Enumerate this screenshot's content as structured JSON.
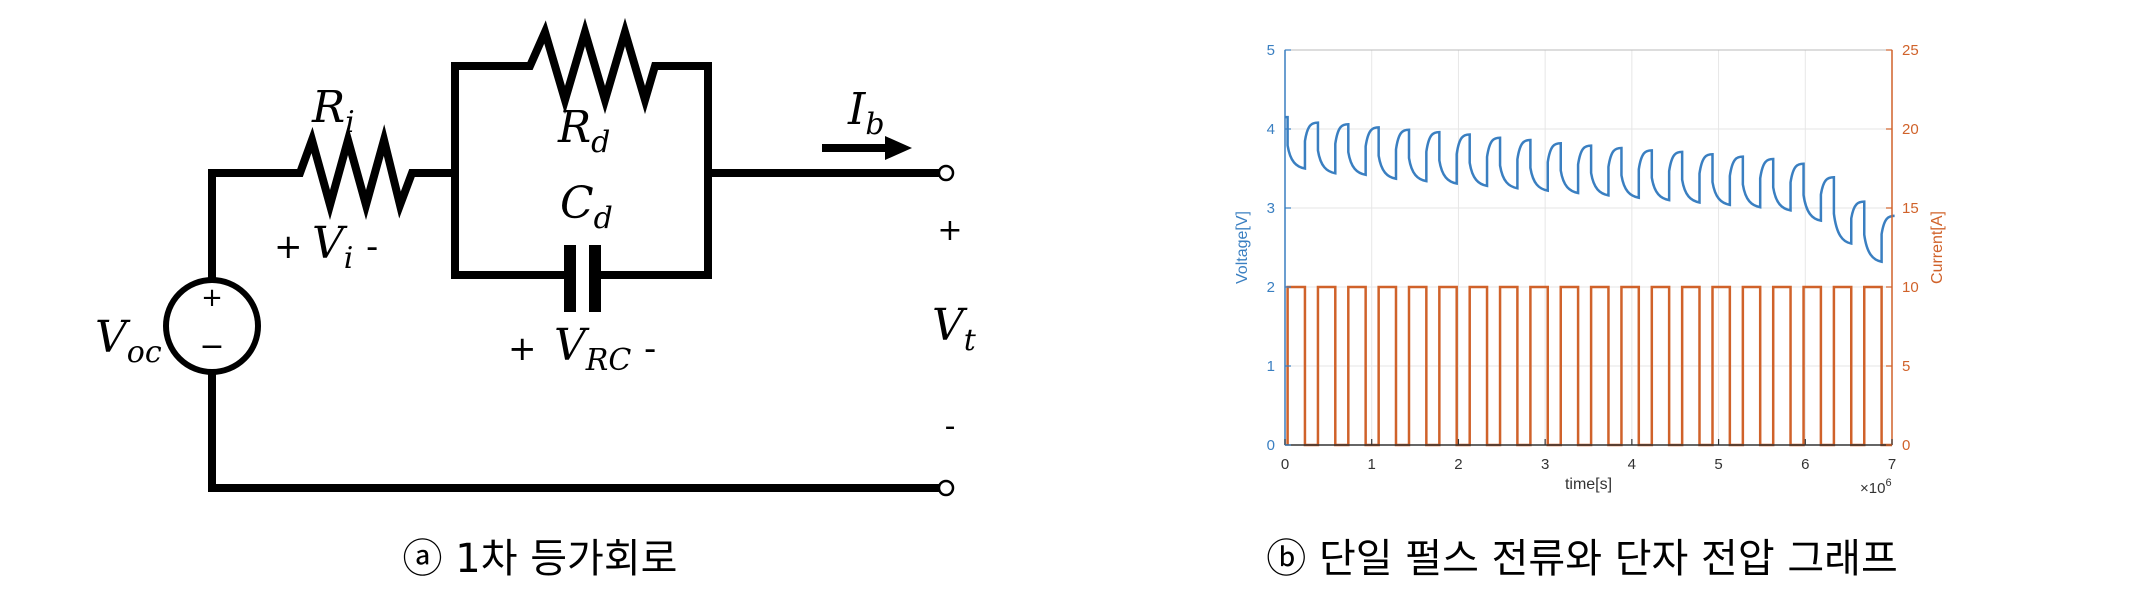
{
  "circuit": {
    "title_caption": "ⓐ 1차 등가회로",
    "labels": {
      "Voc_main": "V",
      "Voc_sub": "oc",
      "Ri_main": "R",
      "Ri_sub": "i",
      "Rd_main": "R",
      "Rd_sub": "d",
      "Cd_main": "C",
      "Cd_sub": "d",
      "Ib_main": "I",
      "Ib_sub": "b",
      "Vi_plus": "+",
      "Vi_main": "V",
      "Vi_sub": "i",
      "Vi_minus": "-",
      "VRC_plus": "+",
      "VRC_main": "V",
      "VRC_sub": "RC",
      "VRC_minus": "-",
      "Vt_main": "V",
      "Vt_sub": "t",
      "Vt_plus": "+",
      "Vt_minus": "-",
      "source_plus": "+",
      "source_minus": "−"
    }
  },
  "chart_caption": "ⓑ 단일 펄스 전류와 단자 전압 그래프",
  "chart_data": {
    "type": "line",
    "xlabel": "time[s]",
    "x_multiplier": "×10",
    "x_multiplier_exp": "6",
    "ylabel_left": "Voltage[V]",
    "ylabel_right": "Current[A]",
    "xlim": [
      0,
      7
    ],
    "ylim_left": [
      0,
      5
    ],
    "ylim_right": [
      0,
      25
    ],
    "x_ticks": [
      "0",
      "1",
      "2",
      "3",
      "4",
      "5",
      "6",
      "7"
    ],
    "y_ticks_left": [
      "0",
      "1",
      "2",
      "3",
      "4",
      "5"
    ],
    "y_ticks_right": [
      "0",
      "5",
      "10",
      "15",
      "20",
      "25"
    ],
    "grid": true,
    "colors": {
      "voltage": "#3a7fc1",
      "current": "#d0622a"
    },
    "pulse_period": 0.35,
    "pulse_width": 0.2,
    "pulse_count": 20,
    "current_high": 10,
    "current_low": 0,
    "voltage_rest": [
      4.15,
      4.08,
      4.06,
      4.02,
      3.99,
      3.96,
      3.93,
      3.89,
      3.86,
      3.82,
      3.79,
      3.76,
      3.73,
      3.71,
      3.68,
      3.65,
      3.62,
      3.56,
      3.39,
      3.08
    ],
    "voltage_end": [
      3.5,
      3.44,
      3.42,
      3.37,
      3.34,
      3.31,
      3.28,
      3.25,
      3.22,
      3.19,
      3.16,
      3.13,
      3.1,
      3.07,
      3.04,
      3.01,
      2.97,
      2.84,
      2.55,
      2.32
    ],
    "voltage_final": 2.9
  }
}
